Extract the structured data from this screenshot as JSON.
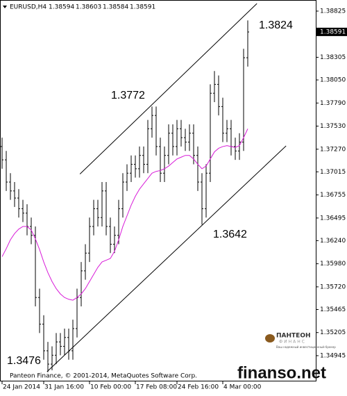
{
  "chart_data": {
    "type": "ohlc",
    "symbol": "EURUSD,H4",
    "header_values": [
      1.38594,
      1.38603,
      1.38584,
      1.38591
    ],
    "copyright": "Panteon Finance, © 2001-2014, MetaQuotes Software Corp.",
    "watermark": "finanso.net",
    "logo": {
      "name": "ПАНТЕОН",
      "sub": "ФИНАНС",
      "slogan": "Ваш надежный инвестиционный брокер"
    },
    "bar_color": "#000000",
    "categories": [
      "24 Jan 2014",
      null,
      null,
      null,
      null,
      null,
      null,
      null,
      null,
      null,
      "31 Jan 16:00",
      null,
      null,
      null,
      null,
      null,
      null,
      null,
      null,
      null,
      null,
      "10 Feb 00:00",
      null,
      null,
      null,
      null,
      null,
      null,
      null,
      null,
      null,
      null,
      "17 Feb 08:00",
      null,
      null,
      null,
      null,
      null,
      null,
      null,
      null,
      null,
      "24 Feb 16:00",
      null,
      null,
      null,
      null,
      null,
      null,
      null,
      null,
      null,
      null,
      "4 Mar 00:00",
      null,
      null,
      null,
      null,
      null,
      null
    ],
    "open": [
      1.373,
      1.3715,
      1.369,
      1.368,
      1.3672,
      1.366,
      1.3655,
      1.364,
      1.363,
      1.356,
      1.353,
      1.35,
      1.3485,
      1.3495,
      1.351,
      1.3505,
      1.3515,
      1.35,
      1.3525,
      1.356,
      1.359,
      1.361,
      1.364,
      1.366,
      1.365,
      1.368,
      1.364,
      1.362,
      1.363,
      1.366,
      1.369,
      1.37,
      1.371,
      1.3705,
      1.372,
      1.371,
      1.375,
      1.3765,
      1.373,
      1.37,
      1.372,
      1.3745,
      1.373,
      1.375,
      1.374,
      1.3735,
      1.3745,
      1.372,
      1.369,
      1.366,
      1.37,
      1.379,
      1.38,
      1.3775,
      1.3745,
      1.375,
      1.373,
      1.3725,
      1.3735,
      1.383
    ],
    "high": [
      1.374,
      1.3725,
      1.37,
      1.369,
      1.3682,
      1.367,
      1.3665,
      1.365,
      1.364,
      1.357,
      1.354,
      1.351,
      1.3505,
      1.352,
      1.352,
      1.3525,
      1.3525,
      1.3535,
      1.357,
      1.36,
      1.362,
      1.365,
      1.367,
      1.367,
      1.369,
      1.369,
      1.365,
      1.364,
      1.367,
      1.37,
      1.371,
      1.372,
      1.372,
      1.373,
      1.373,
      1.376,
      1.3775,
      1.3775,
      1.374,
      1.373,
      1.3755,
      1.3755,
      1.376,
      1.376,
      1.375,
      1.3755,
      1.3755,
      1.373,
      1.37,
      1.371,
      1.38,
      1.3815,
      1.381,
      1.3785,
      1.376,
      1.376,
      1.374,
      1.3745,
      1.384,
      1.3872
    ],
    "low": [
      1.3705,
      1.368,
      1.367,
      1.3662,
      1.365,
      1.3645,
      1.363,
      1.362,
      1.355,
      1.352,
      1.349,
      1.3476,
      1.3478,
      1.3485,
      1.3495,
      1.3495,
      1.349,
      1.349,
      1.3515,
      1.355,
      1.358,
      1.36,
      1.363,
      1.364,
      1.364,
      1.363,
      1.361,
      1.361,
      1.362,
      1.365,
      1.368,
      1.369,
      1.3695,
      1.3695,
      1.37,
      1.37,
      1.374,
      1.372,
      1.369,
      1.369,
      1.371,
      1.372,
      1.372,
      1.373,
      1.3725,
      1.3725,
      1.371,
      1.368,
      1.3642,
      1.365,
      1.369,
      1.378,
      1.3765,
      1.3735,
      1.3735,
      1.372,
      1.3715,
      1.3715,
      1.3725,
      1.382
    ],
    "close": [
      1.3715,
      1.369,
      1.368,
      1.3672,
      1.366,
      1.3655,
      1.364,
      1.363,
      1.356,
      1.353,
      1.35,
      1.3485,
      1.3495,
      1.351,
      1.3505,
      1.3515,
      1.35,
      1.3525,
      1.356,
      1.359,
      1.361,
      1.364,
      1.366,
      1.365,
      1.368,
      1.364,
      1.362,
      1.363,
      1.366,
      1.369,
      1.37,
      1.371,
      1.3705,
      1.372,
      1.371,
      1.375,
      1.3765,
      1.373,
      1.37,
      1.372,
      1.3745,
      1.373,
      1.375,
      1.374,
      1.3735,
      1.3745,
      1.372,
      1.369,
      1.366,
      1.37,
      1.379,
      1.38,
      1.3775,
      1.3745,
      1.375,
      1.373,
      1.3725,
      1.3735,
      1.383,
      1.3859
    ],
    "moving_average": {
      "color": "#d81bd8",
      "values": [
        1.3606,
        1.3615,
        1.3625,
        1.3632,
        1.3637,
        1.364,
        1.364,
        1.3636,
        1.3626,
        1.3614,
        1.36,
        1.3588,
        1.3578,
        1.357,
        1.3564,
        1.356,
        1.3558,
        1.3557,
        1.356,
        1.3564,
        1.357,
        1.3578,
        1.3586,
        1.3594,
        1.36,
        1.3602,
        1.3604,
        1.3612,
        1.3625,
        1.364,
        1.3652,
        1.3664,
        1.3674,
        1.3682,
        1.3688,
        1.3694,
        1.37,
        1.3702,
        1.3703,
        1.3705,
        1.3708,
        1.3712,
        1.3716,
        1.3718,
        1.372,
        1.372,
        1.3716,
        1.371,
        1.3705,
        1.3708,
        1.3716,
        1.3724,
        1.3728,
        1.373,
        1.3731,
        1.373,
        1.3729,
        1.3731,
        1.374,
        1.375
      ]
    },
    "trendlines": [
      {
        "x": [
          18.7,
          61.2
        ],
        "y": [
          1.3699,
          1.3891
        ]
      },
      {
        "x": [
          10.8,
          68.2
        ],
        "y": [
          1.34765,
          1.37307
        ]
      }
    ],
    "annotations": [
      "1.3476",
      "1.3772",
      "1.3642",
      "1.3824"
    ],
    "last_price_label": 1.38591,
    "ylim": [
      1.34663,
      1.3895
    ],
    "yticks": [
      1.38825,
      1.38305,
      {
        "value": 1.3805,
        "label": "1.38050"
      },
      {
        "value": 1.3779,
        "label": "1.37790"
      },
      {
        "value": 1.3753,
        "label": "1.37530"
      },
      {
        "value": 1.3727,
        "label": "1.37270"
      },
      1.37015,
      1.36755,
      1.36495,
      {
        "value": 1.3624,
        "label": "1.36240"
      },
      {
        "value": 1.3598,
        "label": "1.35980"
      },
      {
        "value": 1.3572,
        "label": "1.35720"
      },
      1.35465,
      1.35205,
      1.34945
    ]
  }
}
